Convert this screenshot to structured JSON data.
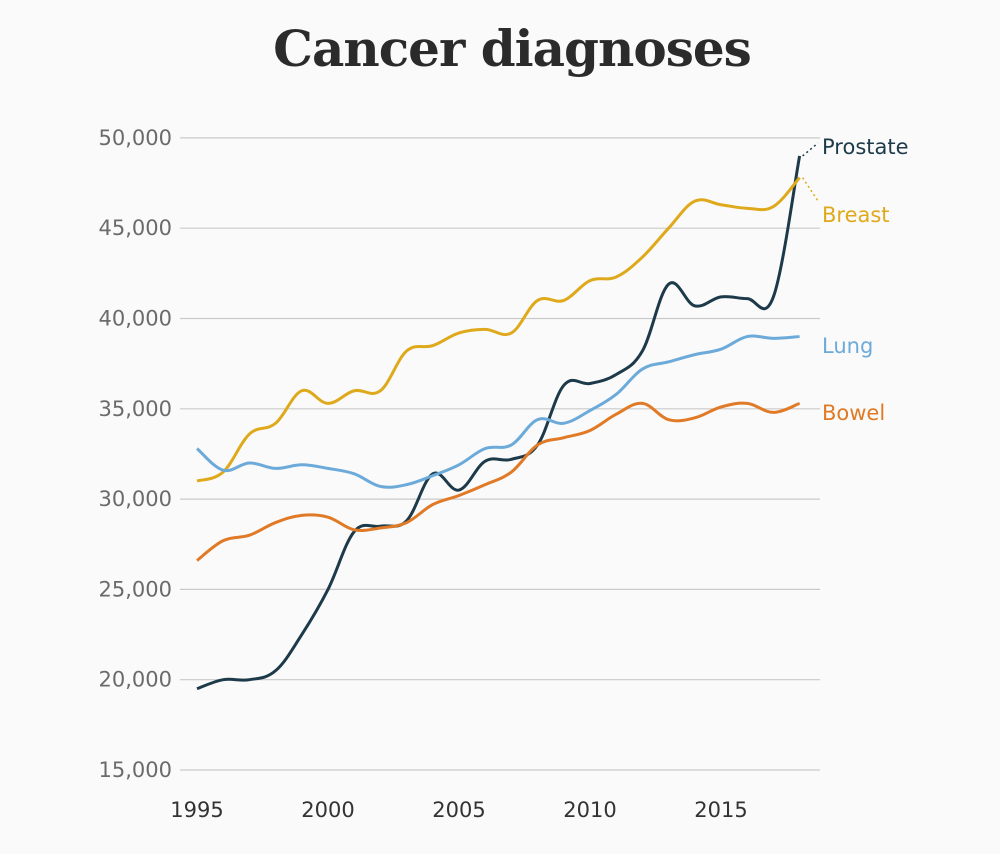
{
  "chart_data": {
    "type": "line",
    "title": "Cancer diagnoses",
    "xlabel": "",
    "ylabel": "",
    "xlim": [
      1995,
      2018
    ],
    "ylim": [
      15000,
      50000
    ],
    "grid": true,
    "legend": "direct labels at right end of lines",
    "x_ticks": [
      "1995",
      "2000",
      "2005",
      "2010",
      "2015"
    ],
    "x_tick_values": [
      1995,
      2000,
      2005,
      2010,
      2015
    ],
    "y_ticks": [
      "15,000",
      "20,000",
      "25,000",
      "30,000",
      "35,000",
      "40,000",
      "45,000",
      "50,000"
    ],
    "y_tick_values": [
      15000,
      20000,
      25000,
      30000,
      35000,
      40000,
      45000,
      50000
    ],
    "x": [
      1995,
      1996,
      1997,
      1998,
      1999,
      2000,
      2001,
      2002,
      2003,
      2004,
      2005,
      2006,
      2007,
      2008,
      2009,
      2010,
      2011,
      2012,
      2013,
      2014,
      2015,
      2016,
      2017,
      2018
    ],
    "series": [
      {
        "name": "Prostate",
        "color": "#1d3a4a",
        "values": [
          19500,
          20000,
          20000,
          20500,
          22500,
          25000,
          28200,
          28500,
          28800,
          31400,
          30500,
          32100,
          32200,
          33000,
          36300,
          36400,
          36900,
          38200,
          41900,
          40700,
          41200,
          41100,
          41200,
          49000
        ]
      },
      {
        "name": "Breast",
        "color": "#dfa91c",
        "values": [
          31000,
          31500,
          33600,
          34200,
          36000,
          35300,
          36000,
          36000,
          38200,
          38500,
          39200,
          39400,
          39200,
          41000,
          41000,
          42100,
          42300,
          43400,
          45000,
          46500,
          46300,
          46100,
          46200,
          47800
        ]
      },
      {
        "name": "Lung",
        "color": "#6caad9",
        "values": [
          32800,
          31600,
          32000,
          31700,
          31900,
          31700,
          31400,
          30700,
          30800,
          31300,
          31900,
          32800,
          33000,
          34400,
          34200,
          34900,
          35800,
          37200,
          37600,
          38000,
          38300,
          39000,
          38900,
          39000
        ]
      },
      {
        "name": "Bowel",
        "color": "#e07a26",
        "values": [
          26600,
          27700,
          28000,
          28700,
          29100,
          29000,
          28300,
          28400,
          28700,
          29700,
          30200,
          30800,
          31500,
          33000,
          33400,
          33800,
          34700,
          35300,
          34400,
          34500,
          35100,
          35300,
          34800,
          35300
        ]
      }
    ]
  }
}
